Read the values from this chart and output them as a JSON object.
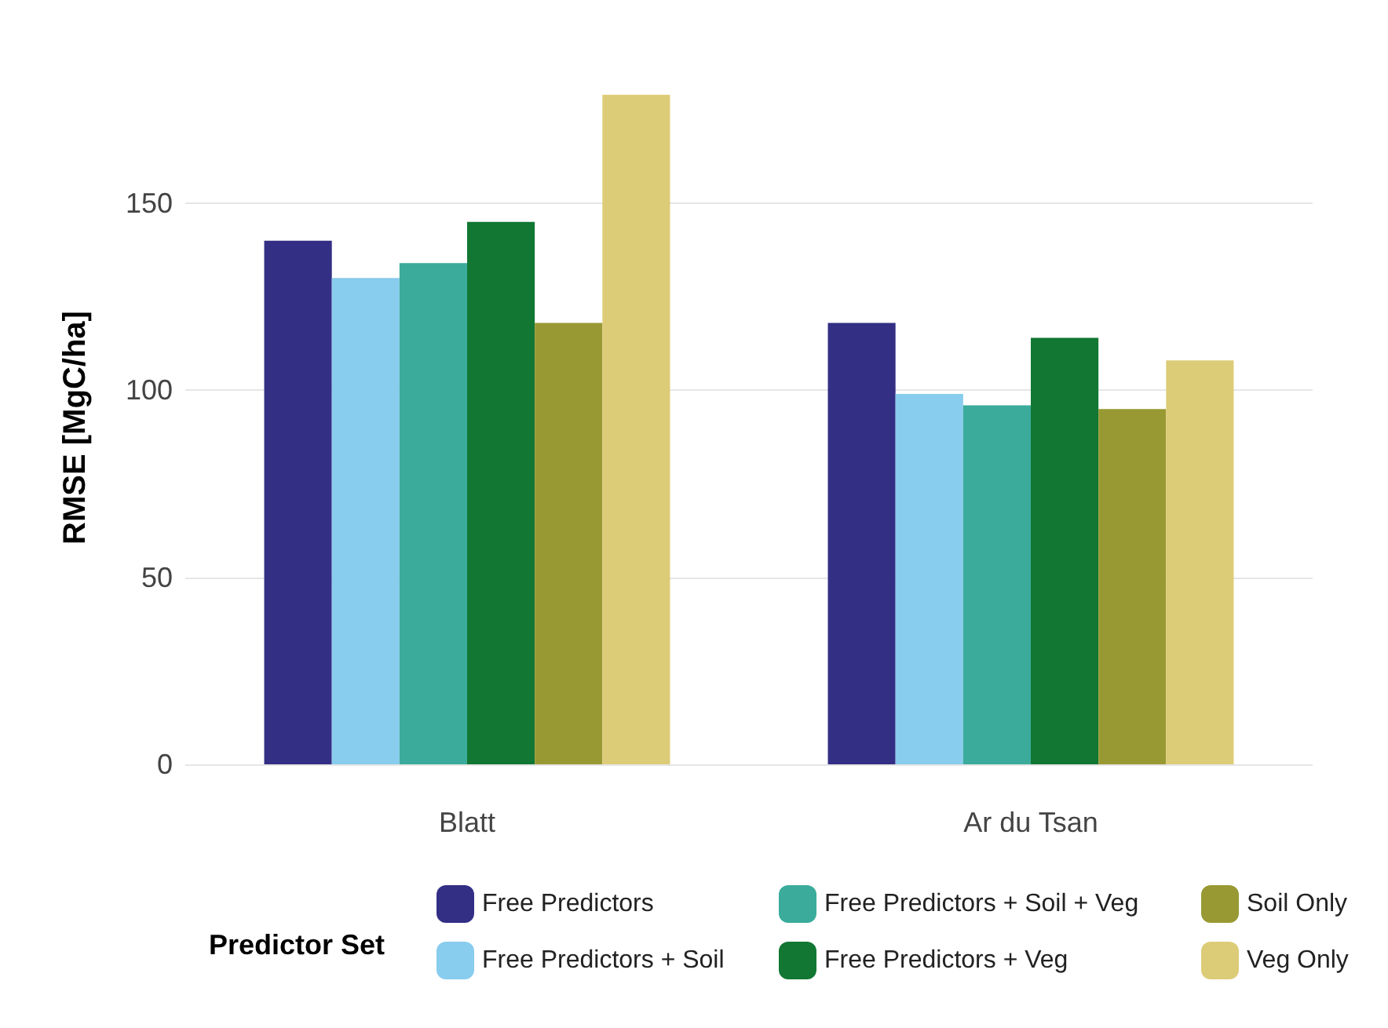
{
  "chart_data": {
    "type": "bar",
    "ylabel": "RMSE [MgC/ha]",
    "legend_title": "Predictor Set",
    "categories": [
      "Blatt",
      "Ar du Tsan"
    ],
    "series": [
      {
        "name": "Free Predictors",
        "color": "#332f85",
        "values": [
          140,
          118
        ]
      },
      {
        "name": "Free Predictors + Soil",
        "color": "#88ccee",
        "values": [
          130,
          99
        ]
      },
      {
        "name": "Free Predictors + Soil + Veg",
        "color": "#3bab9b",
        "values": [
          134,
          96
        ]
      },
      {
        "name": "Free Predictors + Veg",
        "color": "#117733",
        "values": [
          145,
          114
        ]
      },
      {
        "name": "Soil Only",
        "color": "#999933",
        "values": [
          118,
          95
        ]
      },
      {
        "name": "Veg Only",
        "color": "#ddcc77",
        "values": [
          179,
          108
        ]
      }
    ],
    "ylim": [
      0,
      180
    ],
    "yticks": [
      0,
      50,
      100,
      150
    ],
    "grid": "y",
    "legend": "bottom"
  }
}
